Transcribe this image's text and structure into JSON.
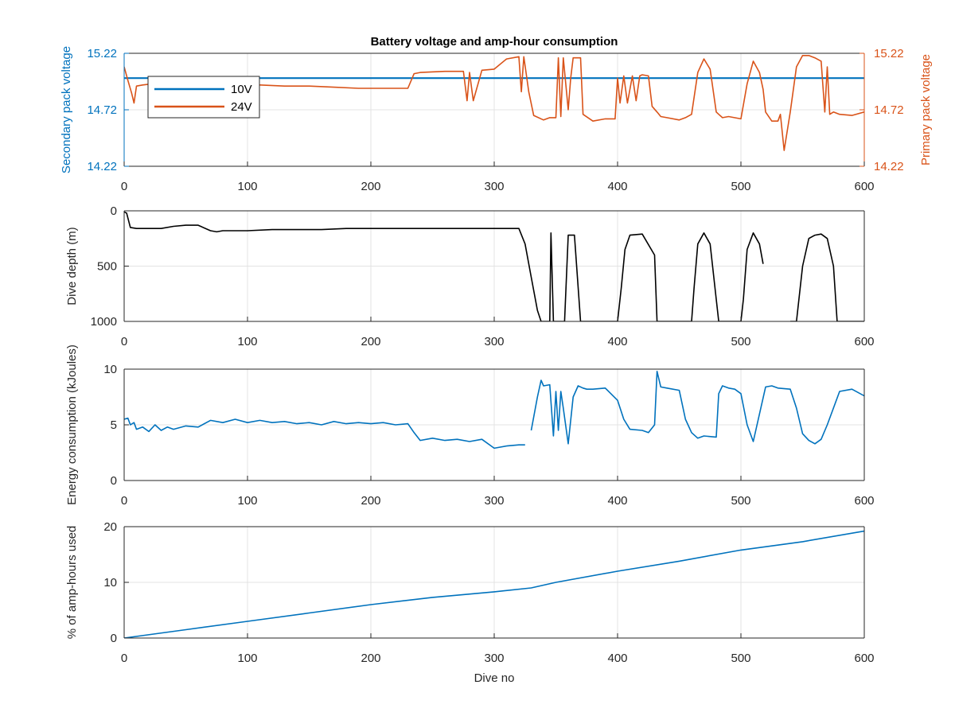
{
  "chart_data": [
    {
      "type": "line",
      "title": "Battery voltage and amp-hour consumption",
      "xlabel": "",
      "xlim": [
        0,
        600
      ],
      "xticks": [
        0,
        100,
        200,
        300,
        400,
        500,
        600
      ],
      "ylabel_left": "Secondary pack voltage",
      "ylabel_right": "Primary pack voltage",
      "ylim": [
        14.22,
        15.22
      ],
      "yticks": [
        14.22,
        14.72,
        15.22
      ],
      "left_axis_color": "#0072BD",
      "right_axis_color": "#D95319",
      "grid": true,
      "legend_position": "upper-left",
      "legend": [
        "10V",
        "24V"
      ],
      "series": [
        {
          "name": "10V",
          "axis": "left",
          "color": "#0072BD",
          "x": [
            0,
            600
          ],
          "y": [
            15.0,
            15.0
          ]
        },
        {
          "name": "24V",
          "axis": "right",
          "color": "#D95319",
          "x": [
            0,
            3,
            6,
            8,
            10,
            15,
            30,
            50,
            70,
            90,
            110,
            130,
            150,
            170,
            190,
            200,
            210,
            220,
            230,
            235,
            240,
            260,
            275,
            278,
            280,
            283,
            290,
            300,
            310,
            320,
            322,
            324,
            328,
            332,
            340,
            345,
            350,
            352,
            354,
            356,
            360,
            362,
            364,
            370,
            372,
            380,
            390,
            398,
            400,
            402,
            405,
            408,
            412,
            415,
            418,
            420,
            425,
            428,
            432,
            435,
            440,
            450,
            455,
            460,
            465,
            470,
            475,
            480,
            482,
            485,
            490,
            500,
            505,
            510,
            515,
            518,
            520,
            525,
            530,
            532,
            535,
            540,
            545,
            550,
            555,
            560,
            565,
            568,
            570,
            572,
            575,
            580,
            590,
            600
          ],
          "y": [
            15.1,
            14.98,
            14.87,
            14.78,
            14.93,
            14.94,
            14.96,
            14.95,
            14.94,
            14.94,
            14.94,
            14.93,
            14.93,
            14.92,
            14.91,
            14.91,
            14.91,
            14.91,
            14.91,
            15.04,
            15.05,
            15.06,
            15.06,
            14.8,
            15.05,
            14.8,
            15.07,
            15.08,
            15.17,
            15.19,
            14.88,
            15.19,
            14.88,
            14.67,
            14.63,
            14.65,
            14.65,
            15.18,
            14.66,
            15.18,
            14.72,
            15.0,
            15.18,
            15.18,
            14.68,
            14.62,
            14.64,
            14.64,
            15.0,
            14.78,
            15.02,
            14.78,
            15.02,
            14.8,
            15.02,
            15.03,
            15.02,
            14.75,
            14.7,
            14.66,
            14.65,
            14.63,
            14.65,
            14.68,
            15.05,
            15.17,
            15.08,
            14.7,
            14.68,
            14.65,
            14.66,
            14.64,
            14.95,
            15.15,
            15.05,
            14.9,
            14.7,
            14.62,
            14.62,
            14.68,
            14.36,
            14.7,
            15.1,
            15.2,
            15.2,
            15.18,
            15.15,
            14.7,
            15.1,
            14.68,
            14.7,
            14.68,
            14.67,
            14.7
          ]
        }
      ]
    },
    {
      "type": "line",
      "title": "",
      "xlabel": "",
      "ylabel": "Dive depth (m)",
      "xlim": [
        0,
        600
      ],
      "xticks": [
        0,
        100,
        200,
        300,
        400,
        500,
        600
      ],
      "ylim": [
        0,
        1000
      ],
      "yticks": [
        0,
        500,
        1000
      ],
      "ytick_labels": [
        "0",
        "500",
        "1000"
      ],
      "y_reversed": true,
      "grid": true,
      "series": [
        {
          "color": "#000000",
          "x": [
            0,
            2,
            5,
            10,
            20,
            30,
            40,
            50,
            60,
            70,
            75,
            80,
            90,
            100,
            120,
            140,
            160,
            180,
            200,
            250,
            300,
            320,
            325,
            330,
            335,
            338,
            340,
            342,
            345,
            346,
            348,
            350,
            352,
            354,
            356,
            357,
            360,
            365,
            370,
            372,
            375,
            400,
            403,
            406,
            410,
            420,
            430,
            432,
            435,
            440,
            460,
            462,
            465,
            470,
            475,
            480,
            482,
            485,
            500,
            502,
            505,
            510,
            515,
            518
          ],
          "y": [
            10,
            20,
            150,
            160,
            160,
            160,
            140,
            130,
            130,
            180,
            190,
            180,
            180,
            180,
            170,
            170,
            170,
            160,
            160,
            160,
            160,
            160,
            300,
            600,
            900,
            1000,
            1000,
            1000,
            1000,
            200,
            1000,
            1000,
            1000,
            1000,
            1000,
            1000,
            220,
            220,
            1000,
            1000,
            1000,
            1000,
            700,
            350,
            220,
            210,
            400,
            1000,
            1000,
            1000,
            1000,
            700,
            300,
            200,
            300,
            800,
            1000,
            1000,
            1000,
            800,
            350,
            200,
            300,
            480
          ]
        },
        {
          "color": "#000000",
          "x": [
            540,
            545,
            550,
            555,
            560,
            565,
            570,
            575,
            578,
            580,
            600
          ],
          "y": [
            1000,
            1000,
            500,
            250,
            220,
            210,
            250,
            500,
            1000,
            1000,
            1000
          ]
        }
      ]
    },
    {
      "type": "line",
      "title": "",
      "xlabel": "",
      "ylabel": "Energy consumption (kJoules)",
      "xlim": [
        0,
        600
      ],
      "xticks": [
        0,
        100,
        200,
        300,
        400,
        500,
        600
      ],
      "ylim": [
        0,
        10
      ],
      "yticks": [
        0,
        5,
        10
      ],
      "grid": true,
      "series": [
        {
          "color": "#0072BD",
          "x": [
            0,
            3,
            5,
            8,
            10,
            15,
            20,
            25,
            30,
            35,
            40,
            50,
            60,
            70,
            80,
            90,
            100,
            110,
            120,
            130,
            140,
            150,
            160,
            170,
            180,
            190,
            200,
            210,
            220,
            230,
            235,
            240,
            250,
            260,
            270,
            280,
            290,
            300,
            310,
            320,
            325
          ],
          "y": [
            5.5,
            5.6,
            5.0,
            5.2,
            4.6,
            4.8,
            4.4,
            5.0,
            4.5,
            4.8,
            4.6,
            4.9,
            4.8,
            5.4,
            5.2,
            5.5,
            5.2,
            5.4,
            5.2,
            5.3,
            5.1,
            5.2,
            5.0,
            5.3,
            5.1,
            5.2,
            5.1,
            5.2,
            5.0,
            5.1,
            4.3,
            3.6,
            3.8,
            3.6,
            3.7,
            3.5,
            3.7,
            2.9,
            3.1,
            3.2,
            3.2
          ]
        },
        {
          "color": "#0072BD",
          "x": [
            330,
            335,
            338,
            340,
            345,
            348,
            350,
            352,
            354,
            356,
            360,
            364,
            368,
            372,
            375,
            380,
            390,
            400,
            405,
            410,
            420,
            425,
            430,
            432,
            435,
            440,
            450,
            455,
            460,
            465,
            470,
            480,
            482,
            485,
            490,
            495,
            500,
            505,
            510,
            520,
            525,
            530,
            540,
            545,
            550,
            555,
            560,
            565,
            570,
            580,
            590,
            600
          ],
          "y": [
            4.5,
            7.5,
            9.0,
            8.5,
            8.6,
            4.0,
            8.0,
            4.5,
            8.0,
            6.5,
            3.3,
            7.5,
            8.5,
            8.3,
            8.2,
            8.2,
            8.3,
            7.2,
            5.5,
            4.6,
            4.5,
            4.3,
            5.0,
            9.8,
            8.4,
            8.3,
            8.1,
            5.5,
            4.3,
            3.8,
            4.0,
            3.9,
            7.8,
            8.5,
            8.3,
            8.2,
            7.8,
            5.0,
            3.5,
            8.4,
            8.5,
            8.3,
            8.2,
            6.5,
            4.2,
            3.6,
            3.3,
            3.7,
            5.0,
            8.0,
            8.2,
            7.6
          ]
        }
      ]
    },
    {
      "type": "line",
      "title": "",
      "xlabel": "Dive no",
      "ylabel": "% of amp-hours used",
      "xlim": [
        0,
        600
      ],
      "xticks": [
        0,
        100,
        200,
        300,
        400,
        500,
        600
      ],
      "ylim": [
        0,
        20
      ],
      "yticks": [
        0,
        10,
        20
      ],
      "grid": true,
      "series": [
        {
          "color": "#0072BD",
          "x": [
            0,
            50,
            100,
            150,
            200,
            250,
            300,
            330,
            350,
            400,
            450,
            500,
            550,
            600
          ],
          "y": [
            0,
            1.5,
            3.0,
            4.5,
            6.0,
            7.3,
            8.3,
            9.0,
            10.0,
            12.0,
            13.8,
            15.8,
            17.3,
            19.2
          ]
        }
      ]
    }
  ]
}
